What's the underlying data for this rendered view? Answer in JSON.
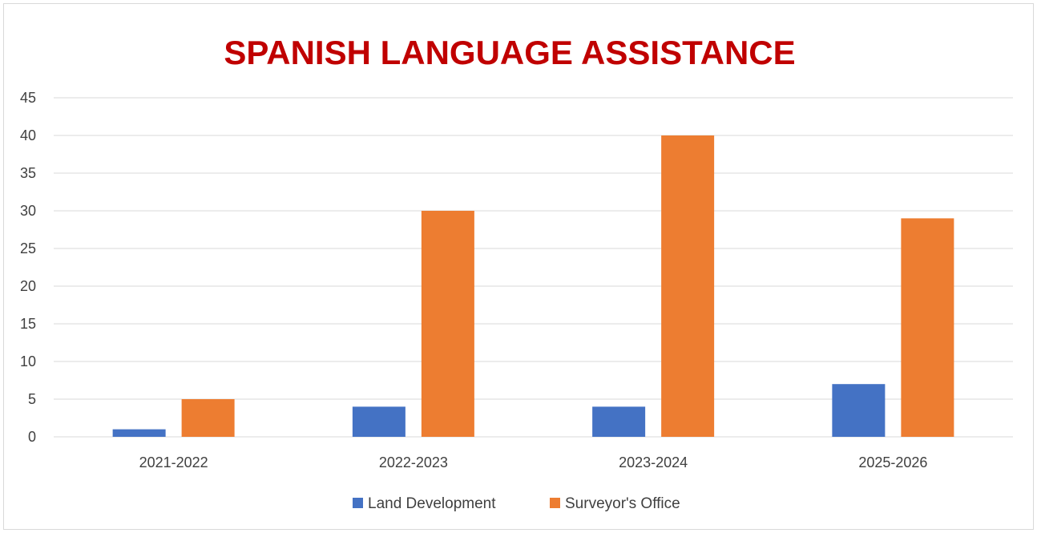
{
  "chart_data": {
    "type": "bar",
    "title": "SPANISH LANGUAGE ASSISTANCE",
    "xlabel": "",
    "ylabel": "",
    "categories": [
      "2021-2022",
      "2022-2023",
      "2023-2024",
      "2025-2026"
    ],
    "series": [
      {
        "name": "Land Development",
        "color": "#4472c4",
        "values": [
          1,
          4,
          4,
          7
        ]
      },
      {
        "name": "Surveyor's Office",
        "color": "#ed7d31",
        "values": [
          5,
          30,
          40,
          29
        ]
      }
    ],
    "ylim": [
      0,
      45
    ],
    "yticks": [
      "0",
      "5",
      "10",
      "15",
      "20",
      "25",
      "30",
      "35",
      "40",
      "45"
    ],
    "grid": true,
    "legend_position": "bottom",
    "colors": {
      "title": "#c00000",
      "gridline": "#d9d9d9",
      "text": "#404040"
    }
  }
}
